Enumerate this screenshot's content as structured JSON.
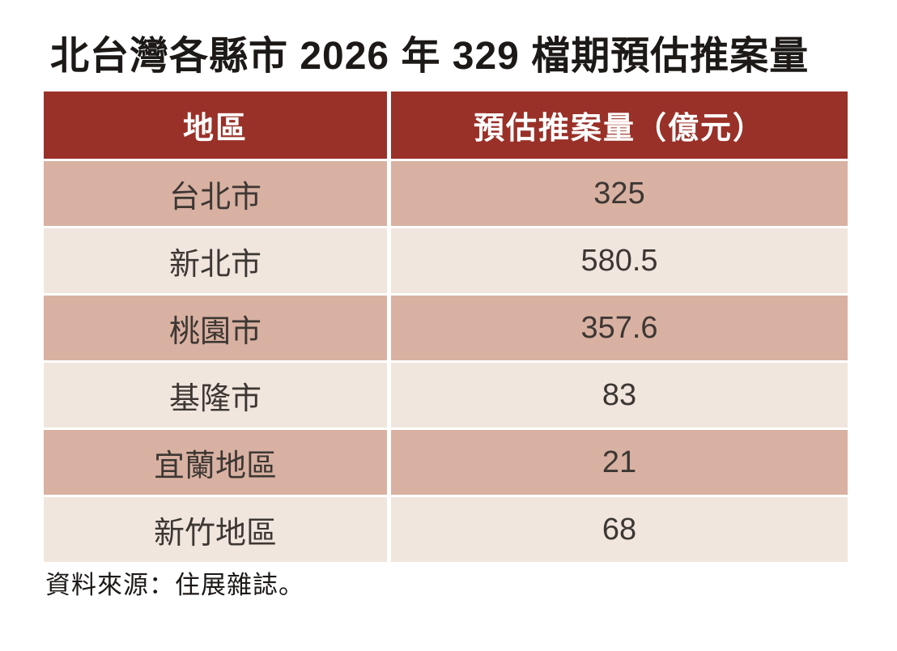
{
  "title": "北台灣各縣市 2026 年 329 檔期預估推案量",
  "table": {
    "columns": [
      "地區",
      "預估推案量（億元）"
    ],
    "rows": [
      {
        "region": "台北市",
        "value": "325"
      },
      {
        "region": "新北市",
        "value": "580.5"
      },
      {
        "region": "桃園市",
        "value": "357.6"
      },
      {
        "region": "基隆市",
        "value": "83"
      },
      {
        "region": "宜蘭地區",
        "value": "21"
      },
      {
        "region": "新竹地區",
        "value": "68"
      }
    ]
  },
  "source": "資料來源：住展雜誌。",
  "colors": {
    "header_bg": "#993129",
    "row_dark_bg": "#D8B1A2",
    "row_light_bg": "#F0E6DE",
    "header_text": "#FFFFFF",
    "body_text": "#3D3733",
    "title_text": "#1C1917",
    "divider": "#FFFFFF"
  },
  "chart_data": {
    "type": "table",
    "title": "北台灣各縣市 2026 年 329 檔期預估推案量",
    "columns": [
      "地區",
      "預估推案量（億元）"
    ],
    "categories": [
      "台北市",
      "新北市",
      "桃園市",
      "基隆市",
      "宜蘭地區",
      "新竹地區"
    ],
    "values": [
      325,
      580.5,
      357.6,
      83,
      21,
      68
    ],
    "unit": "億元",
    "source": "資料來源：住展雜誌。",
    "layout": "header row dark red, data rows alternate tan/cream, white gaps as dividers"
  }
}
